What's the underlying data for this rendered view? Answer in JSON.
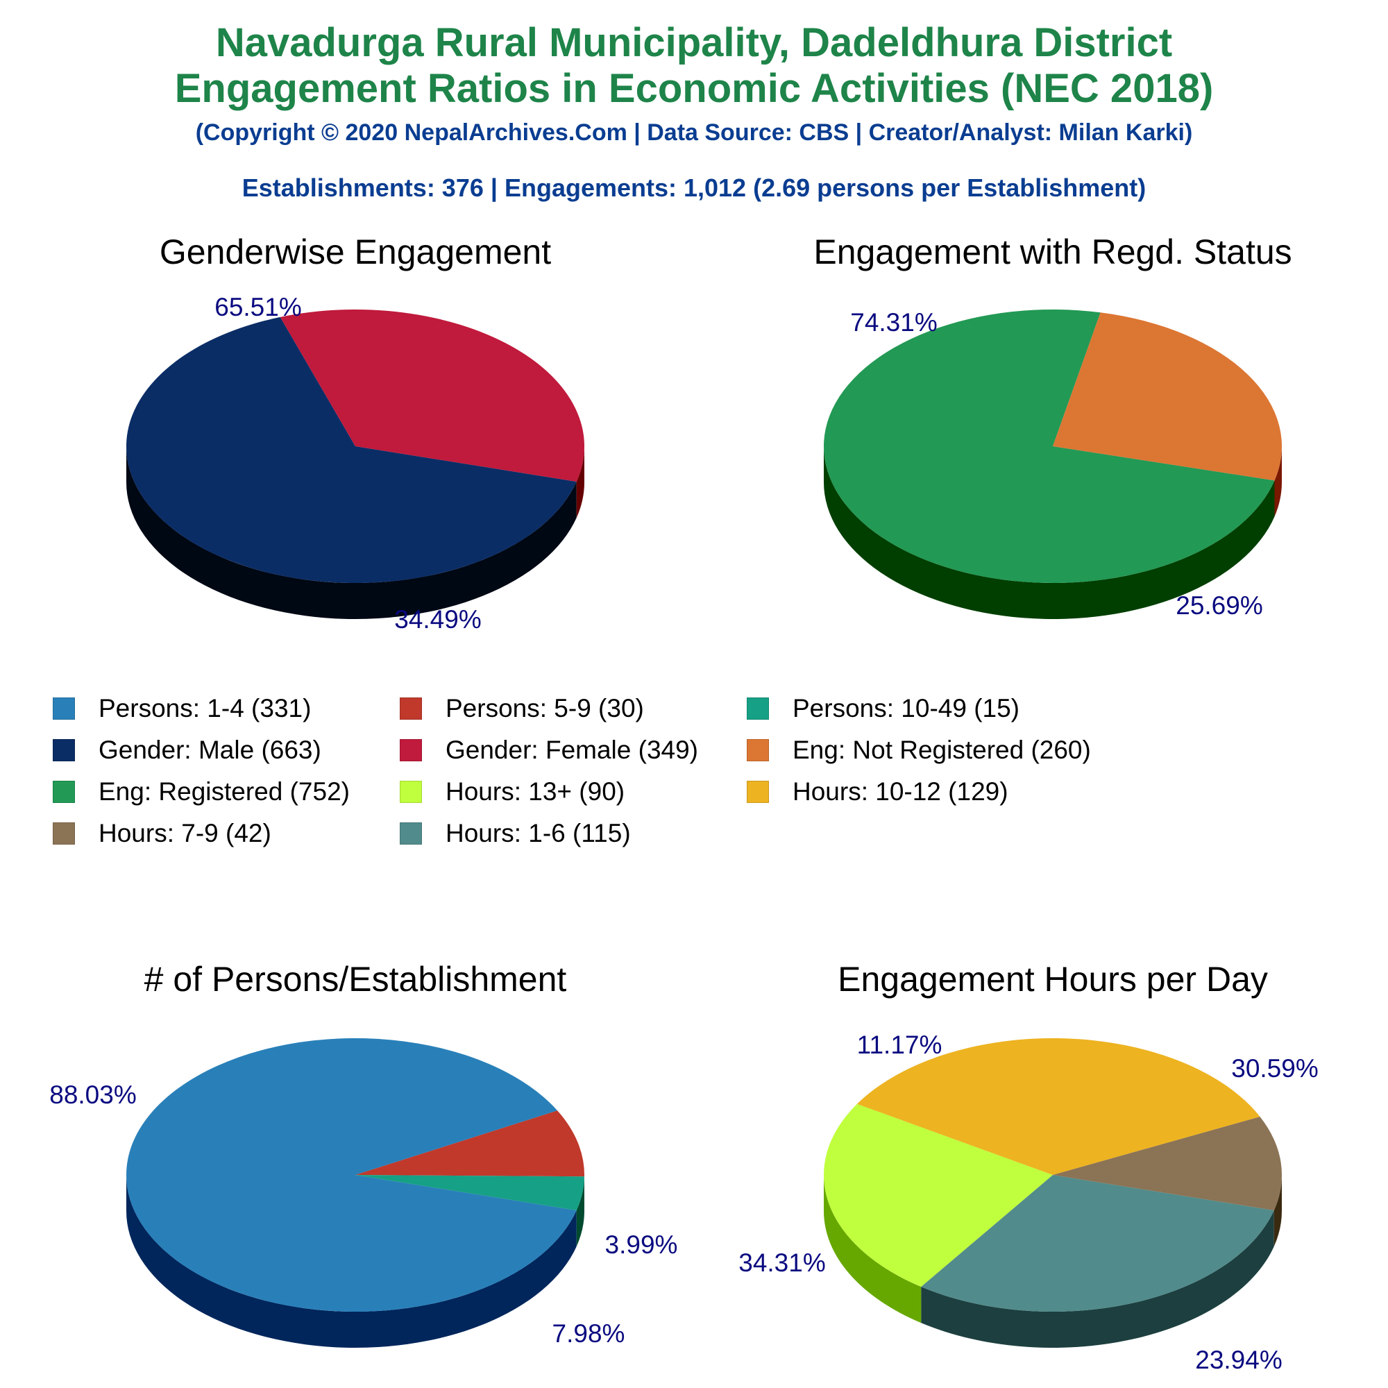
{
  "header": {
    "line1": "Navadurga Rural Municipality, Dadeldhura District",
    "line2": "Engagement Ratios in Economic Activities (NEC 2018)",
    "copyright": "(Copyright © 2020 NepalArchives.Com | Data Source: CBS | Creator/Analyst: Milan Karki)",
    "summary": "Establishments: 376 | Engagements: 1,012 (2.69 persons per Establishment)"
  },
  "legend": [
    {
      "label": "Persons: 1-4 (331)",
      "color": "#2980b9"
    },
    {
      "label": "Persons: 5-9 (30)",
      "color": "#c0392b"
    },
    {
      "label": "Persons: 10-49 (15)",
      "color": "#16a085"
    },
    {
      "label": "Gender: Male (663)",
      "color": "#0b2d66"
    },
    {
      "label": "Gender: Female (349)",
      "color": "#c01a3c"
    },
    {
      "label": "Eng: Not Registered (260)",
      "color": "#dc7633"
    },
    {
      "label": "Eng: Registered (752)",
      "color": "#229954"
    },
    {
      "label": "Hours: 13+ (90)",
      "color": "#c0ff3e"
    },
    {
      "label": "Hours: 10-12 (129)",
      "color": "#edb321"
    },
    {
      "label": "Hours: 7-9 (42)",
      "color": "#8b7355"
    },
    {
      "label": "Hours: 1-6 (115)",
      "color": "#528b8b"
    }
  ],
  "chart_data": [
    {
      "type": "pie",
      "title": "Genderwise Engagement",
      "slices": [
        {
          "category": "Male",
          "value": 663,
          "percent": 65.51,
          "label": "65.51%",
          "color": "#0b2d66",
          "side": "#000814"
        },
        {
          "category": "Female",
          "value": 349,
          "percent": 34.49,
          "label": "34.49%",
          "color": "#c01a3c",
          "side": "#650000"
        }
      ]
    },
    {
      "type": "pie",
      "title": "Engagement with Regd. Status",
      "slices": [
        {
          "category": "Registered",
          "value": 752,
          "percent": 74.31,
          "label": "74.31%",
          "color": "#229954",
          "side": "#003f00"
        },
        {
          "category": "Not Registered",
          "value": 260,
          "percent": 25.69,
          "label": "25.69%",
          "color": "#dc7633",
          "side": "#7a1800"
        }
      ]
    },
    {
      "type": "pie",
      "title": "# of Persons/Establishment",
      "slices": [
        {
          "category": "1-4",
          "value": 331,
          "percent": 88.03,
          "label": "88.03%",
          "color": "#2980b9",
          "side": "#00265c"
        },
        {
          "category": "5-9",
          "value": 30,
          "percent": 7.98,
          "label": "7.98%",
          "color": "#c0392b",
          "side": "#640000"
        },
        {
          "category": "10-49",
          "value": 15,
          "percent": 3.99,
          "label": "3.99%",
          "color": "#16a085",
          "side": "#004a30"
        }
      ]
    },
    {
      "type": "pie",
      "title": "Engagement Hours per Day",
      "slices": [
        {
          "category": "1-6",
          "value": 115,
          "percent": 30.59,
          "label": "30.59%",
          "color": "#528b8b",
          "side": "#1d3f3f"
        },
        {
          "category": "13+",
          "value": 90,
          "percent": 23.94,
          "label": "23.94%",
          "color": "#c0ff3e",
          "side": "#66a800"
        },
        {
          "category": "10-12",
          "value": 129,
          "percent": 34.31,
          "label": "34.31%",
          "color": "#edb321",
          "side": "#925600"
        },
        {
          "category": "7-9",
          "value": 42,
          "percent": 11.17,
          "label": "11.17%",
          "color": "#8b7355",
          "side": "#3a2a10"
        }
      ]
    }
  ]
}
